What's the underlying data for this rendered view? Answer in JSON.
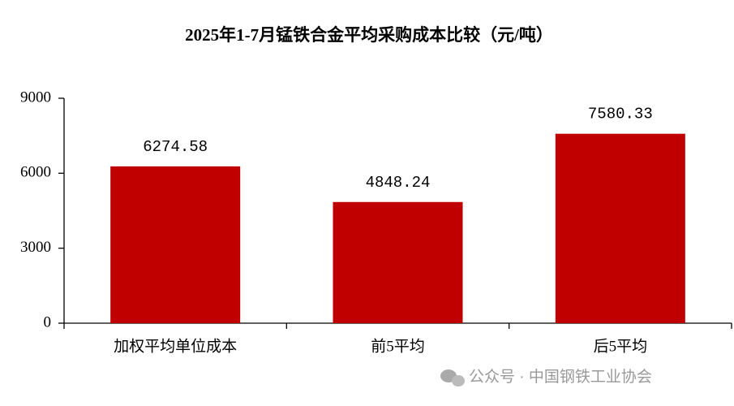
{
  "chart_data": {
    "type": "bar",
    "title": "2025年1-7月锰铁合金平均采购成本比较（元/吨）",
    "categories": [
      "加权平均单位成本",
      "前5平均",
      "后5平均"
    ],
    "values": [
      6274.58,
      4848.24,
      7580.33
    ],
    "color": "#c00000",
    "ylim": [
      0,
      9000
    ],
    "yticks": [
      0,
      3000,
      6000,
      9000
    ],
    "grid": false,
    "watermark": "公众号 · 中国钢铁工业协会"
  }
}
